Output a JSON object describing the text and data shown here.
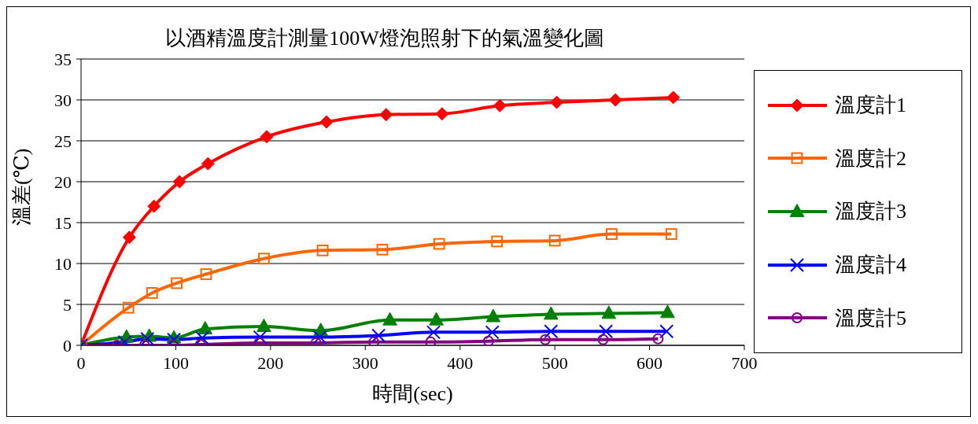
{
  "chart_data": {
    "type": "line",
    "title": "以酒精溫度計測量100W燈泡照射下的氣溫變化圖",
    "xlabel": "時間(sec)",
    "ylabel": "溫差(℃)",
    "xlim": [
      0,
      700
    ],
    "xticks": [
      0,
      100,
      200,
      300,
      400,
      500,
      600,
      700
    ],
    "ylim": [
      0,
      35
    ],
    "yticks": [
      0,
      5,
      10,
      15,
      20,
      25,
      30,
      35
    ],
    "grid": "y",
    "legend": "right",
    "series": [
      {
        "name": "溫度計1",
        "color": "#ff0000",
        "marker": "diamond",
        "x": [
          0,
          51,
          77,
          104,
          134,
          196,
          259,
          322,
          381,
          442,
          502,
          564,
          625
        ],
        "values": [
          0,
          13.2,
          17,
          20,
          22.2,
          25.5,
          27.3,
          28.2,
          28.3,
          29.3,
          29.7,
          30,
          30.3
        ]
      },
      {
        "name": "溫度計2",
        "color": "#ff6600",
        "marker": "square",
        "x": [
          0,
          50,
          75,
          101,
          132,
          193,
          255,
          318,
          378,
          439,
          500,
          560,
          623
        ],
        "values": [
          0,
          4.6,
          6.4,
          7.6,
          8.7,
          10.6,
          11.6,
          11.7,
          12.4,
          12.7,
          12.8,
          13.6,
          13.6
        ]
      },
      {
        "name": "溫度計3",
        "color": "#008000",
        "marker": "triangle",
        "x": [
          0,
          48,
          72,
          98,
          131,
          193,
          253,
          326,
          375,
          435,
          496,
          557,
          619
        ],
        "values": [
          0,
          1,
          1.1,
          0.9,
          2,
          2.3,
          1.8,
          3.1,
          3.1,
          3.5,
          3.8,
          3.9,
          4
        ]
      },
      {
        "name": "溫度計4",
        "color": "#0000ff",
        "marker": "cross",
        "x": [
          0,
          46,
          70,
          98,
          128,
          189,
          252,
          314,
          372,
          434,
          496,
          554,
          618
        ],
        "values": [
          0,
          0.4,
          0.8,
          0.7,
          0.9,
          1,
          1,
          1.2,
          1.6,
          1.6,
          1.7,
          1.7,
          1.7
        ]
      },
      {
        "name": "溫度計5",
        "color": "#800080",
        "marker": "circle",
        "x": [
          0,
          38,
          67,
          97,
          126,
          188,
          248,
          309,
          369,
          430,
          490,
          551,
          609
        ],
        "values": [
          0,
          0,
          0,
          0,
          0.1,
          0.3,
          0.3,
          0.4,
          0.4,
          0.5,
          0.7,
          0.7,
          0.8
        ]
      }
    ]
  }
}
